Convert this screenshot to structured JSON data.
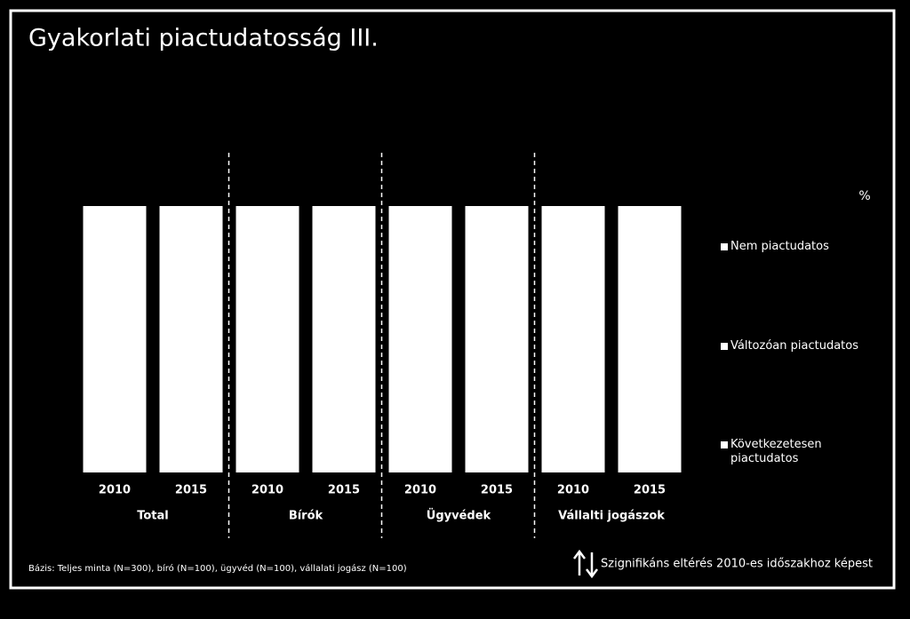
{
  "chart_data": {
    "type": "bar",
    "title": "Gyakorlati piactudatosság III.",
    "categories": [
      "2010",
      "2015",
      "2010",
      "2015",
      "2010",
      "2015",
      "2010",
      "2015"
    ],
    "groups": [
      "Total",
      "Bírók",
      "Ügyvédek",
      "Vállalti jogászok"
    ],
    "values": [
      100,
      100,
      100,
      100,
      100,
      100,
      100,
      100
    ],
    "color": "#ffffff",
    "ylim": [
      0,
      100
    ],
    "unit_label": "%",
    "legend": [
      "Nem piactudatos",
      "Változóan piactudatos",
      "Következetesen piactudatos"
    ],
    "footnote": "Bázis: Teljes minta (N=300), bíró (N=100), ügyvéd (N=100), vállalati jogász (N=100)",
    "significance_note": "Szignifikáns eltérés 2010-es időszakhoz képest"
  }
}
